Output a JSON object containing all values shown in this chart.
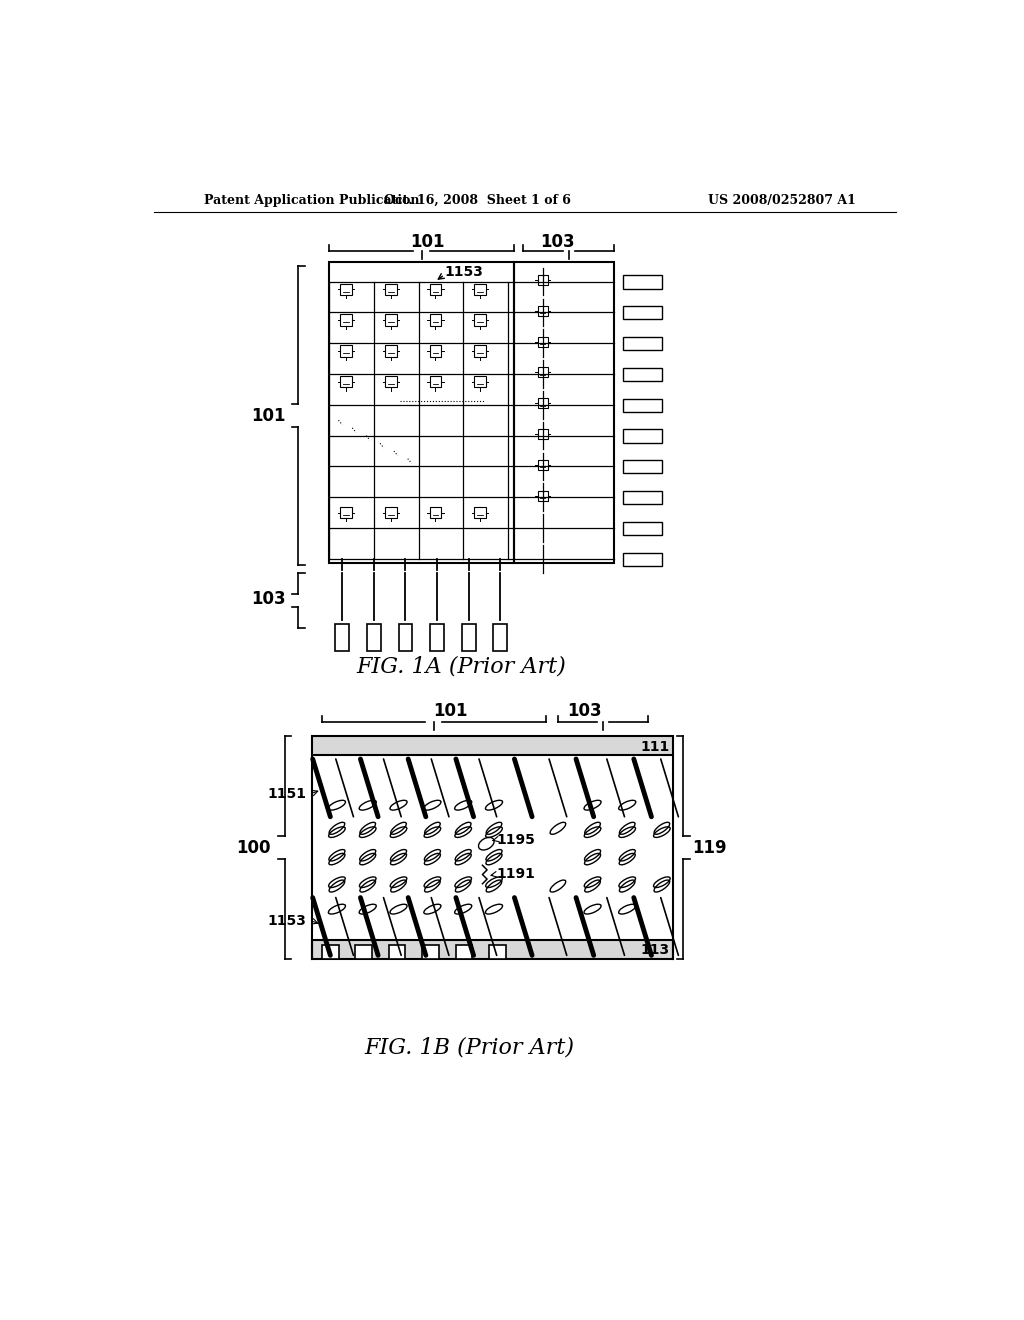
{
  "header_left": "Patent Application Publication",
  "header_mid": "Oct. 16, 2008  Sheet 1 of 6",
  "header_right": "US 2008/0252807 A1",
  "fig1a_caption": "FIG. 1A (Prior Art)",
  "fig1b_caption": "FIG. 1B (Prior Art)",
  "bg_color": "#ffffff",
  "line_color": "#000000"
}
